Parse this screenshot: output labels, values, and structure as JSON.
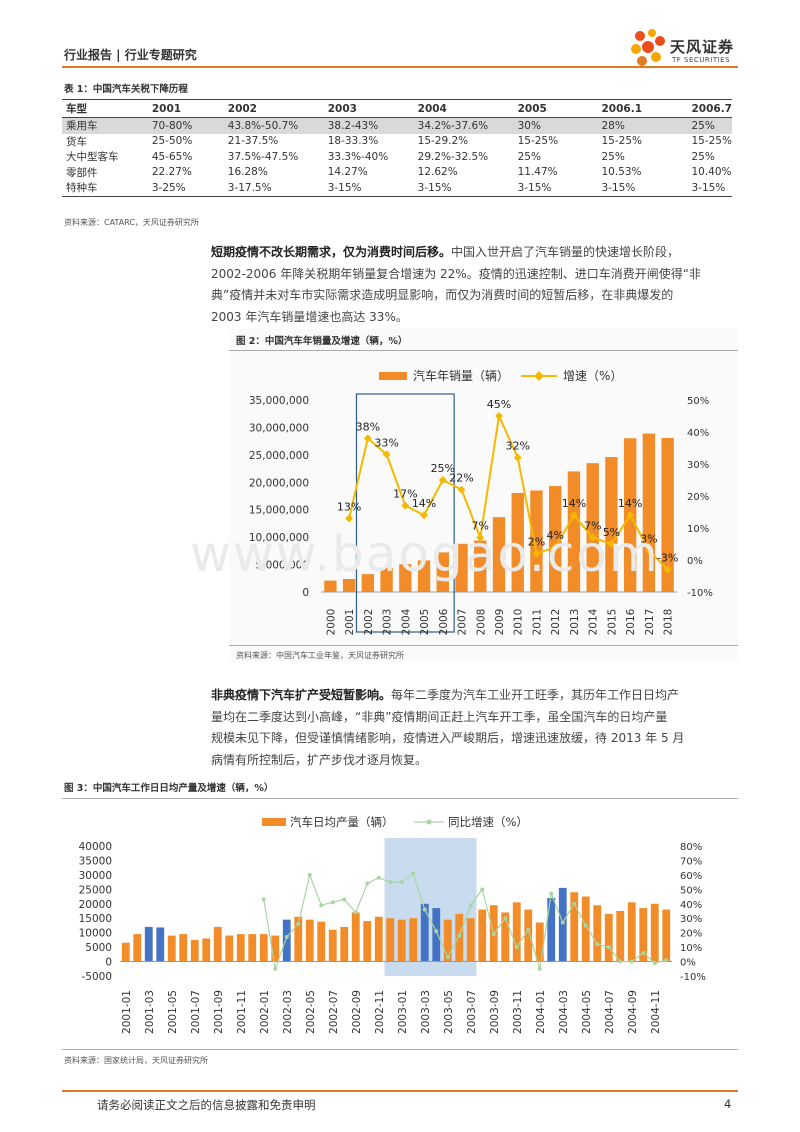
{
  "header": {
    "category": "行业报告 | 行业专题研究",
    "logo_name": "天风证券",
    "logo_sub": "TF SECURITIES"
  },
  "table1": {
    "caption": "表 1：中国汽车关税下降历程",
    "columns": [
      "车型",
      "2001",
      "2002",
      "2003",
      "2004",
      "2005",
      "2006.1",
      "2006.7"
    ],
    "rows": [
      [
        "乘用车",
        "70-80%",
        "43.8%-50.7%",
        "38.2-43%",
        "34.2%-37.6%",
        "30%",
        "28%",
        "25%"
      ],
      [
        "货车",
        "25-50%",
        "21-37.5%",
        "18-33.3%",
        "15-29.2%",
        "15-25%",
        "15-25%",
        "15-25%"
      ],
      [
        "大中型客车",
        "45-65%",
        "37.5%-47.5%",
        "33.3%-40%",
        "29.2%-32.5%",
        "25%",
        "25%",
        "25%"
      ],
      [
        "零部件",
        "22.27%",
        "16.28%",
        "14.27%",
        "12.62%",
        "11.47%",
        "10.53%",
        "10.40%"
      ],
      [
        "特种车",
        "3-25%",
        "3-17.5%",
        "3-15%",
        "3-15%",
        "3-15%",
        "3-15%",
        "3-15%"
      ]
    ],
    "source": "资料来源：CATARC，天风证券研究所"
  },
  "para1": {
    "bold": "短期疫情不改长期需求，仅为消费时间后移。",
    "lines": [
      "中国入世开启了汽车销量的快速增长阶段，",
      "2002-2006 年降关税期年销量复合增速为 22%。疫情的迅速控制、进口车消费开闸使得“非",
      "典”疫情并未对车市实际需求造成明显影响，而仅为消费时间的短暂后移，在非典爆发的",
      "2003 年汽车销量增速也高达 33%。"
    ]
  },
  "fig2": {
    "caption": "图 2：中国汽车年销量及增速（辆，%）",
    "source": "资料来源：中国汽车工业年鉴，天风证券研究所"
  },
  "para2": {
    "bold": "非典疫情下汽车扩产受短暂影响。",
    "lines": [
      "每年二季度为汽车工业开工旺季，其历年工作日日均产",
      "量均在二季度达到小高峰，“非典”疫情期间正赶上汽车开工季，虽全国汽车的日均产量",
      "规模未见下降，但受谨慎情绪影响，疫情进入严峻期后，增速迅速放缓，待 2013 年 5 月",
      "病情有所控制后，扩产步伐才逐月恢复。"
    ]
  },
  "fig3": {
    "caption": "图 3：中国汽车工作日日均产量及增速（辆，%）",
    "source": "资料来源：国家统计局，天风证券研究所"
  },
  "watermark": "www.baogao.com",
  "footer": {
    "disclaimer": "请务必阅读正文之后的信息披露和免责申明",
    "page": "4"
  },
  "colors": {
    "orange": "#f28c28",
    "yellow": "#f5b800",
    "blue": "#4472c4",
    "brand": "#e07b23",
    "highlight_box": "#c9dcef",
    "green": "#a8d5a2"
  },
  "chart_data": [
    {
      "type": "bar",
      "categories": [
        "2000",
        "2001",
        "2002",
        "2003",
        "2004",
        "2005",
        "2006",
        "2007",
        "2008",
        "2009",
        "2010",
        "2011",
        "2012",
        "2013",
        "2014",
        "2015",
        "2016",
        "2017",
        "2018"
      ],
      "series": [
        {
          "name": "汽车年销量（辆）",
          "type": "bar",
          "axis": "left",
          "values": [
            2080000,
            2370000,
            3250000,
            4390000,
            5070000,
            5760000,
            7220000,
            8790000,
            9380000,
            13640000,
            18060000,
            18510000,
            19310000,
            21980000,
            23490000,
            24600000,
            28030000,
            28880000,
            28080000
          ]
        },
        {
          "name": "增速（%）",
          "type": "line",
          "axis": "right",
          "values": [
            null,
            13,
            38,
            33,
            17,
            14,
            25,
            22,
            7,
            45,
            32,
            2,
            4,
            14,
            7,
            5,
            14,
            3,
            -3
          ]
        }
      ],
      "point_labels": [
        "",
        "13%",
        "38%",
        "33%",
        "17%",
        "14%",
        "25%",
        "22%",
        "7%",
        "45%",
        "32%",
        "2%",
        "4%",
        "14%",
        "7%",
        "5%",
        "14%",
        "3%",
        "-3%"
      ],
      "y_left": {
        "min": 0,
        "max": 35000000,
        "ticks": [
          "0",
          "5,000,000",
          "10,000,000",
          "15,000,000",
          "20,000,000",
          "25,000,000",
          "30,000,000",
          "35,000,000"
        ]
      },
      "y_right": {
        "min": -10,
        "max": 50,
        "ticks": [
          "-10%",
          "0%",
          "10%",
          "20%",
          "30%",
          "40%",
          "50%"
        ]
      },
      "highlight_range": [
        "2002",
        "2006"
      ],
      "legend_position": "top-center",
      "grid": false
    },
    {
      "type": "bar",
      "title": "",
      "categories": [
        "2001-01",
        "2001-02",
        "2001-03",
        "2001-04",
        "2001-05",
        "2001-06",
        "2001-07",
        "2001-08",
        "2001-09",
        "2001-10",
        "2001-11",
        "2001-12",
        "2002-01",
        "2002-02",
        "2002-03",
        "2002-04",
        "2002-05",
        "2002-06",
        "2002-07",
        "2002-08",
        "2002-09",
        "2002-10",
        "2002-11",
        "2002-12",
        "2003-01",
        "2003-02",
        "2003-03",
        "2003-04",
        "2003-05",
        "2003-06",
        "2003-07",
        "2003-08",
        "2003-09",
        "2003-10",
        "2003-11",
        "2003-12",
        "2004-01",
        "2004-02",
        "2004-03",
        "2004-04",
        "2004-05",
        "2004-06",
        "2004-07",
        "2004-08",
        "2004-09",
        "2004-10",
        "2004-11",
        "2004-12"
      ],
      "tick_labels": [
        "2001-01",
        "2001-03",
        "2001-05",
        "2001-07",
        "2001-09",
        "2001-11",
        "2002-01",
        "2002-03",
        "2002-05",
        "2002-07",
        "2002-09",
        "2002-11",
        "2003-01",
        "2003-03",
        "2003-05",
        "2003-07",
        "2003-09",
        "2003-11",
        "2004-01",
        "2004-03",
        "2004-05",
        "2004-07",
        "2004-09",
        "2004-11"
      ],
      "series": [
        {
          "name": "汽车日均产量（辆）",
          "type": "bar",
          "axis": "left",
          "values": [
            6500,
            9500,
            12000,
            11800,
            9000,
            9500,
            7500,
            8000,
            12000,
            9000,
            9500,
            9500,
            9500,
            9000,
            14500,
            15500,
            14500,
            13800,
            11000,
            12000,
            17000,
            14000,
            15500,
            15000,
            14500,
            15000,
            20000,
            18500,
            14500,
            16500,
            15000,
            18000,
            19500,
            17000,
            20500,
            18000,
            13500,
            22000,
            25500,
            24000,
            22500,
            19500,
            16500,
            17500,
            20500,
            18500,
            20000,
            18000
          ]
        },
        {
          "name": "同比增速（%）",
          "type": "line",
          "axis": "right",
          "values": [
            null,
            null,
            null,
            null,
            null,
            null,
            null,
            null,
            null,
            null,
            null,
            null,
            43,
            -5,
            17,
            26,
            60,
            39,
            41,
            43,
            34,
            54,
            58,
            55,
            55,
            61,
            36,
            21,
            3,
            18,
            39,
            50,
            19,
            30,
            10,
            22,
            -5,
            47,
            27,
            40,
            25,
            12,
            10,
            0,
            0,
            6,
            -1,
            1
          ]
        }
      ],
      "highlight_color_bars": [
        "2001-03",
        "2001-04",
        "2002-03",
        "2003-03",
        "2003-04",
        "2004-02",
        "2004-03"
      ],
      "highlight_range": [
        "2002-12",
        "2003-07"
      ],
      "y_left": {
        "min": -5000,
        "max": 40000,
        "ticks": [
          "-5000",
          "0",
          "5000",
          "10000",
          "15000",
          "20000",
          "25000",
          "30000",
          "35000",
          "40000"
        ]
      },
      "y_right": {
        "min": -10,
        "max": 80,
        "ticks": [
          "-10%",
          "0%",
          "10%",
          "20%",
          "30%",
          "40%",
          "50%",
          "60%",
          "70%",
          "80%"
        ]
      },
      "legend_position": "top-center",
      "grid": false
    }
  ]
}
